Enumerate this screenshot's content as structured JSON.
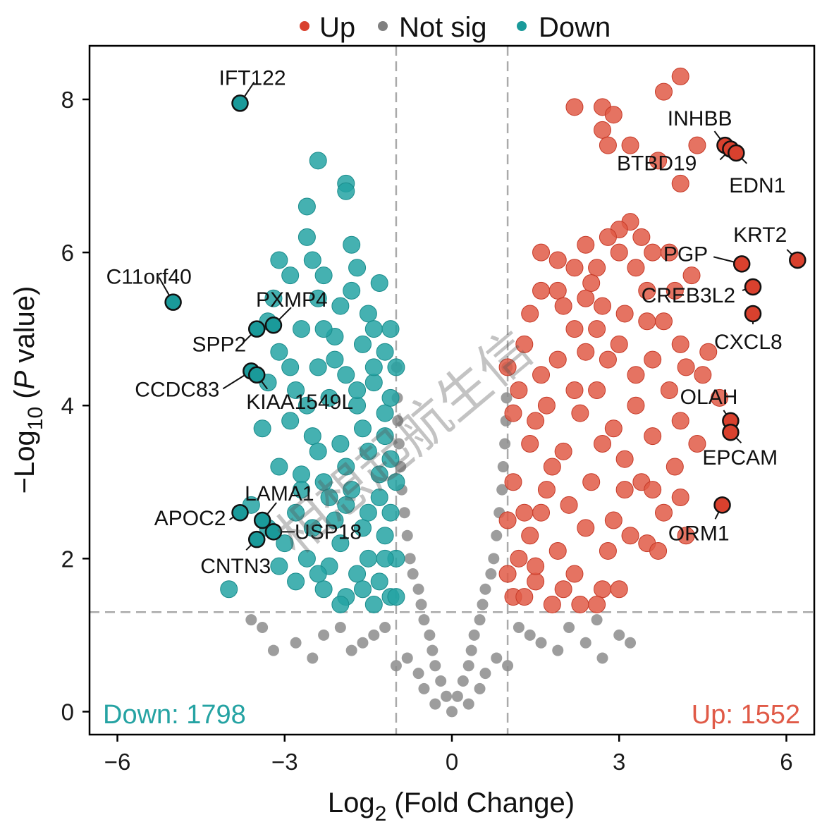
{
  "chart_data": {
    "type": "scatter",
    "subtype": "volcano",
    "xlabel_main": "Log",
    "xlabel_sub": "2",
    "xlabel_rest": " (Fold Change)",
    "ylabel_prefix": "−Log",
    "ylabel_sub": "10",
    "ylabel_rest_open": " (",
    "ylabel_rest_p": "P",
    "ylabel_rest_close": " value)",
    "xlim": [
      -6.5,
      6.5
    ],
    "ylim": [
      -0.3,
      8.7
    ],
    "x_ticks": [
      -6,
      -3,
      0,
      3,
      6
    ],
    "x_tick_labels": [
      "−6",
      "−3",
      "0",
      "3",
      "6"
    ],
    "y_ticks": [
      0,
      2,
      4,
      6,
      8
    ],
    "y_tick_labels": [
      "0",
      "2",
      "4",
      "6",
      "8"
    ],
    "fc_threshold": [
      -1,
      1
    ],
    "p_threshold_log": 1.3,
    "grid": false,
    "legend": {
      "position": "top",
      "items": [
        {
          "label": "Up",
          "color": "#d9412e"
        },
        {
          "label": "Not sig",
          "color": "#808080"
        },
        {
          "label": "Down",
          "color": "#1a9a9a"
        }
      ]
    },
    "colors": {
      "up": "#e05a47",
      "down": "#25a3a3",
      "ns": "#8c8c8c",
      "threshold": "#aaaaaa"
    },
    "counts": {
      "down_label": "Down: 1798",
      "up_label": "Up: 1552",
      "down": 1798,
      "up": 1552
    },
    "background_points": {
      "up": [
        [
          2.2,
          7.9
        ],
        [
          2.7,
          7.9
        ],
        [
          2.9,
          7.8
        ],
        [
          2.7,
          7.6
        ],
        [
          2.8,
          7.4
        ],
        [
          3.2,
          7.4
        ],
        [
          3.8,
          8.1
        ],
        [
          4.1,
          8.3
        ],
        [
          3.7,
          7.2
        ],
        [
          4.4,
          7.4
        ],
        [
          4.1,
          6.9
        ],
        [
          3.2,
          6.4
        ],
        [
          3.0,
          6.3
        ],
        [
          2.8,
          6.2
        ],
        [
          3.4,
          6.2
        ],
        [
          2.4,
          6.1
        ],
        [
          1.6,
          6.0
        ],
        [
          1.9,
          5.9
        ],
        [
          3.0,
          6.0
        ],
        [
          3.6,
          6.0
        ],
        [
          3.9,
          6.0
        ],
        [
          2.2,
          5.8
        ],
        [
          2.6,
          5.8
        ],
        [
          3.3,
          5.8
        ],
        [
          4.0,
          5.5
        ],
        [
          4.3,
          5.7
        ],
        [
          1.6,
          5.5
        ],
        [
          1.9,
          5.5
        ],
        [
          2.4,
          5.4
        ],
        [
          2.7,
          5.3
        ],
        [
          3.1,
          5.2
        ],
        [
          3.5,
          5.1
        ],
        [
          3.8,
          5.1
        ],
        [
          4.1,
          4.8
        ],
        [
          4.6,
          4.7
        ],
        [
          4.2,
          4.5
        ],
        [
          4.5,
          4.4
        ],
        [
          3.9,
          4.2
        ],
        [
          4.1,
          3.8
        ],
        [
          4.4,
          3.5
        ],
        [
          3.6,
          3.6
        ],
        [
          3.1,
          3.3
        ],
        [
          3.4,
          3.0
        ],
        [
          3.6,
          2.9
        ],
        [
          4.1,
          2.8
        ],
        [
          3.8,
          2.6
        ],
        [
          2.9,
          2.5
        ],
        [
          3.2,
          2.3
        ],
        [
          2.8,
          2.1
        ],
        [
          3.5,
          2.2
        ],
        [
          3.7,
          2.1
        ],
        [
          2.7,
          1.6
        ],
        [
          3.0,
          1.6
        ],
        [
          2.6,
          1.4
        ],
        [
          2.3,
          1.4
        ],
        [
          1.8,
          1.4
        ],
        [
          2.0,
          1.6
        ],
        [
          1.5,
          1.7
        ],
        [
          1.4,
          2.3
        ],
        [
          1.7,
          2.9
        ],
        [
          2.0,
          3.4
        ],
        [
          2.3,
          3.9
        ],
        [
          2.6,
          4.2
        ],
        [
          1.3,
          4.8
        ],
        [
          1.2,
          4.2
        ],
        [
          1.5,
          3.8
        ],
        [
          1.9,
          4.6
        ],
        [
          2.2,
          5.0
        ],
        [
          1.4,
          5.2
        ],
        [
          2.0,
          5.3
        ],
        [
          2.4,
          4.7
        ],
        [
          2.8,
          4.6
        ],
        [
          3.3,
          4.4
        ],
        [
          1.1,
          3.0
        ],
        [
          1.2,
          2.0
        ],
        [
          1.1,
          1.5
        ],
        [
          1.3,
          1.5
        ],
        [
          1.6,
          2.6
        ],
        [
          2.1,
          2.7
        ],
        [
          2.5,
          3.0
        ],
        [
          2.9,
          3.7
        ],
        [
          3.3,
          4.0
        ],
        [
          3.0,
          4.8
        ],
        [
          2.6,
          5.0
        ],
        [
          3.6,
          4.6
        ],
        [
          1.8,
          3.2
        ],
        [
          1.4,
          3.5
        ],
        [
          1.1,
          3.9
        ],
        [
          1.7,
          4.0
        ],
        [
          2.2,
          4.2
        ],
        [
          2.7,
          3.5
        ],
        [
          3.1,
          2.9
        ],
        [
          2.4,
          2.4
        ],
        [
          1.9,
          2.1
        ],
        [
          1.5,
          1.9
        ],
        [
          2.2,
          1.8
        ],
        [
          1.3,
          2.6
        ],
        [
          1.0,
          4.5
        ],
        [
          1.0,
          2.5
        ],
        [
          1.0,
          1.8
        ],
        [
          1.6,
          4.4
        ],
        [
          2.5,
          5.6
        ],
        [
          3.5,
          5.5
        ],
        [
          4.8,
          4.1
        ],
        [
          4.0,
          3.2
        ],
        [
          4.2,
          2.3
        ]
      ],
      "down": [
        [
          -2.4,
          7.2
        ],
        [
          -1.9,
          6.9
        ],
        [
          -1.9,
          6.8
        ],
        [
          -2.6,
          6.6
        ],
        [
          -2.6,
          6.2
        ],
        [
          -2.5,
          5.9
        ],
        [
          -1.8,
          6.1
        ],
        [
          -3.1,
          5.9
        ],
        [
          -2.9,
          5.7
        ],
        [
          -2.3,
          5.7
        ],
        [
          -1.7,
          5.8
        ],
        [
          -1.3,
          5.6
        ],
        [
          -3.2,
          5.4
        ],
        [
          -2.4,
          5.4
        ],
        [
          -2.0,
          5.3
        ],
        [
          -1.5,
          5.2
        ],
        [
          -3.3,
          5.1
        ],
        [
          -2.7,
          5.0
        ],
        [
          -2.1,
          4.9
        ],
        [
          -1.6,
          4.8
        ],
        [
          -1.2,
          4.7
        ],
        [
          -3.1,
          4.7
        ],
        [
          -2.4,
          4.5
        ],
        [
          -1.9,
          4.4
        ],
        [
          -1.4,
          4.3
        ],
        [
          -2.8,
          4.2
        ],
        [
          -2.2,
          4.1
        ],
        [
          -1.7,
          4.0
        ],
        [
          -1.2,
          3.9
        ],
        [
          -2.9,
          3.8
        ],
        [
          -2.5,
          3.6
        ],
        [
          -2.0,
          3.5
        ],
        [
          -1.5,
          3.4
        ],
        [
          -1.1,
          3.3
        ],
        [
          -2.7,
          3.1
        ],
        [
          -2.3,
          3.0
        ],
        [
          -1.8,
          2.9
        ],
        [
          -1.3,
          2.8
        ],
        [
          -3.1,
          3.2
        ],
        [
          -2.8,
          2.6
        ],
        [
          -2.1,
          2.5
        ],
        [
          -1.6,
          2.4
        ],
        [
          -1.2,
          2.3
        ],
        [
          -3.0,
          2.2
        ],
        [
          -2.6,
          2.0
        ],
        [
          -2.2,
          1.9
        ],
        [
          -1.7,
          1.8
        ],
        [
          -1.3,
          1.7
        ],
        [
          -2.8,
          1.7
        ],
        [
          -2.3,
          1.6
        ],
        [
          -1.9,
          1.5
        ],
        [
          -1.4,
          1.4
        ],
        [
          -4.0,
          1.6
        ],
        [
          -3.1,
          1.9
        ],
        [
          -2.0,
          2.2
        ],
        [
          -1.5,
          2.0
        ],
        [
          -1.1,
          1.5
        ],
        [
          -1.1,
          2.6
        ],
        [
          -1.1,
          4.1
        ],
        [
          -1.6,
          3.7
        ],
        [
          -2.2,
          2.8
        ],
        [
          -2.6,
          4.0
        ],
        [
          -3.3,
          4.3
        ],
        [
          -2.1,
          4.6
        ],
        [
          -1.4,
          5.0
        ],
        [
          -1.0,
          3.0
        ],
        [
          -1.0,
          4.5
        ],
        [
          -1.8,
          5.5
        ],
        [
          -2.9,
          4.5
        ],
        [
          -3.4,
          3.7
        ],
        [
          -2.4,
          3.4
        ],
        [
          -1.9,
          2.7
        ],
        [
          -1.6,
          1.6
        ],
        [
          -2.5,
          2.4
        ],
        [
          -1.3,
          3.1
        ],
        [
          -1.0,
          2.0
        ],
        [
          -1.0,
          1.5
        ],
        [
          -1.2,
          3.6
        ],
        [
          -1.7,
          4.2
        ],
        [
          -2.3,
          5.0
        ],
        [
          -1.4,
          4.5
        ],
        [
          -1.1,
          5.0
        ],
        [
          -1.9,
          3.2
        ],
        [
          -2.7,
          2.9
        ],
        [
          -2.0,
          1.4
        ],
        [
          -1.5,
          2.6
        ],
        [
          -3.3,
          2.4
        ],
        [
          -3.6,
          2.7
        ],
        [
          -2.4,
          1.8
        ],
        [
          -1.2,
          2.0
        ]
      ],
      "ns": [
        [
          0.0,
          0.0
        ],
        [
          -0.1,
          0.2
        ],
        [
          0.1,
          0.2
        ],
        [
          -0.2,
          0.4
        ],
        [
          0.2,
          0.4
        ],
        [
          -0.3,
          0.6
        ],
        [
          0.3,
          0.6
        ],
        [
          -0.35,
          0.8
        ],
        [
          0.35,
          0.8
        ],
        [
          -0.4,
          1.0
        ],
        [
          0.4,
          1.0
        ],
        [
          -0.5,
          1.2
        ],
        [
          0.5,
          1.2
        ],
        [
          -0.55,
          1.4
        ],
        [
          0.55,
          1.4
        ],
        [
          -0.6,
          1.6
        ],
        [
          0.6,
          1.6
        ],
        [
          -0.7,
          1.8
        ],
        [
          0.7,
          1.8
        ],
        [
          -0.75,
          2.0
        ],
        [
          0.75,
          2.0
        ],
        [
          -0.8,
          2.3
        ],
        [
          0.8,
          2.3
        ],
        [
          -0.85,
          2.6
        ],
        [
          0.85,
          2.6
        ],
        [
          -0.9,
          2.9
        ],
        [
          0.9,
          2.9
        ],
        [
          -0.92,
          3.2
        ],
        [
          0.92,
          3.2
        ],
        [
          -0.95,
          3.5
        ],
        [
          0.95,
          3.5
        ],
        [
          -0.97,
          3.8
        ],
        [
          0.97,
          3.8
        ],
        [
          -0.98,
          4.1
        ],
        [
          0.98,
          4.1
        ],
        [
          -0.99,
          4.5
        ],
        [
          0.99,
          4.5
        ],
        [
          -1.2,
          1.1
        ],
        [
          -1.4,
          1.0
        ],
        [
          -1.6,
          0.9
        ],
        [
          -1.8,
          0.8
        ],
        [
          -2.0,
          1.1
        ],
        [
          -2.3,
          1.0
        ],
        [
          -2.5,
          0.7
        ],
        [
          -3.4,
          1.1
        ],
        [
          -3.6,
          1.2
        ],
        [
          -3.2,
          0.8
        ],
        [
          -2.8,
          0.9
        ],
        [
          1.2,
          1.1
        ],
        [
          1.4,
          1.0
        ],
        [
          1.6,
          0.9
        ],
        [
          1.9,
          0.8
        ],
        [
          2.1,
          1.1
        ],
        [
          2.4,
          0.9
        ],
        [
          2.6,
          1.2
        ],
        [
          2.7,
          0.7
        ],
        [
          3.0,
          1.0
        ],
        [
          3.2,
          0.9
        ],
        [
          -0.6,
          0.5
        ],
        [
          0.6,
          0.5
        ],
        [
          -0.8,
          0.7
        ],
        [
          0.8,
          0.7
        ],
        [
          -1.0,
          0.6
        ],
        [
          1.0,
          0.6
        ],
        [
          -0.3,
          0.1
        ],
        [
          0.3,
          0.1
        ],
        [
          -0.5,
          0.3
        ],
        [
          0.5,
          0.3
        ]
      ]
    },
    "labeled_genes": [
      {
        "gene": "IFT122",
        "x": -3.8,
        "y": 7.95,
        "group": "down"
      },
      {
        "gene": "C11orf40",
        "x": -5.0,
        "y": 5.35,
        "group": "down"
      },
      {
        "gene": "PXMP4",
        "x": -3.2,
        "y": 5.05,
        "group": "down"
      },
      {
        "gene": "SPP2",
        "x": -3.5,
        "y": 5.0,
        "group": "down"
      },
      {
        "gene": "CCDC83",
        "x": -3.6,
        "y": 4.45,
        "group": "down"
      },
      {
        "gene": "KIAA1549L",
        "x": -3.5,
        "y": 4.4,
        "group": "down"
      },
      {
        "gene": "LAMA1",
        "x": -3.4,
        "y": 2.5,
        "group": "down"
      },
      {
        "gene": "APOC2",
        "x": -3.8,
        "y": 2.6,
        "group": "down"
      },
      {
        "gene": "USP18",
        "x": -3.2,
        "y": 2.35,
        "group": "down"
      },
      {
        "gene": "CNTN3",
        "x": -3.5,
        "y": 2.25,
        "group": "down"
      },
      {
        "gene": "INHBB",
        "x": 4.9,
        "y": 7.4,
        "group": "up"
      },
      {
        "gene": "BTBD19",
        "x": 5.0,
        "y": 7.35,
        "group": "up"
      },
      {
        "gene": "EDN1",
        "x": 5.1,
        "y": 7.3,
        "group": "up"
      },
      {
        "gene": "KRT2",
        "x": 6.2,
        "y": 5.9,
        "group": "up"
      },
      {
        "gene": "PGP",
        "x": 5.2,
        "y": 5.85,
        "group": "up"
      },
      {
        "gene": "CREB3L2",
        "x": 5.4,
        "y": 5.55,
        "group": "up"
      },
      {
        "gene": "CXCL8",
        "x": 5.4,
        "y": 5.2,
        "group": "up"
      },
      {
        "gene": "OLAH",
        "x": 5.0,
        "y": 3.8,
        "group": "up"
      },
      {
        "gene": "EPCAM",
        "x": 5.0,
        "y": 3.65,
        "group": "up"
      },
      {
        "gene": "ORM1",
        "x": 4.85,
        "y": 2.7,
        "group": "up"
      }
    ],
    "watermark": "相想起航生信"
  }
}
